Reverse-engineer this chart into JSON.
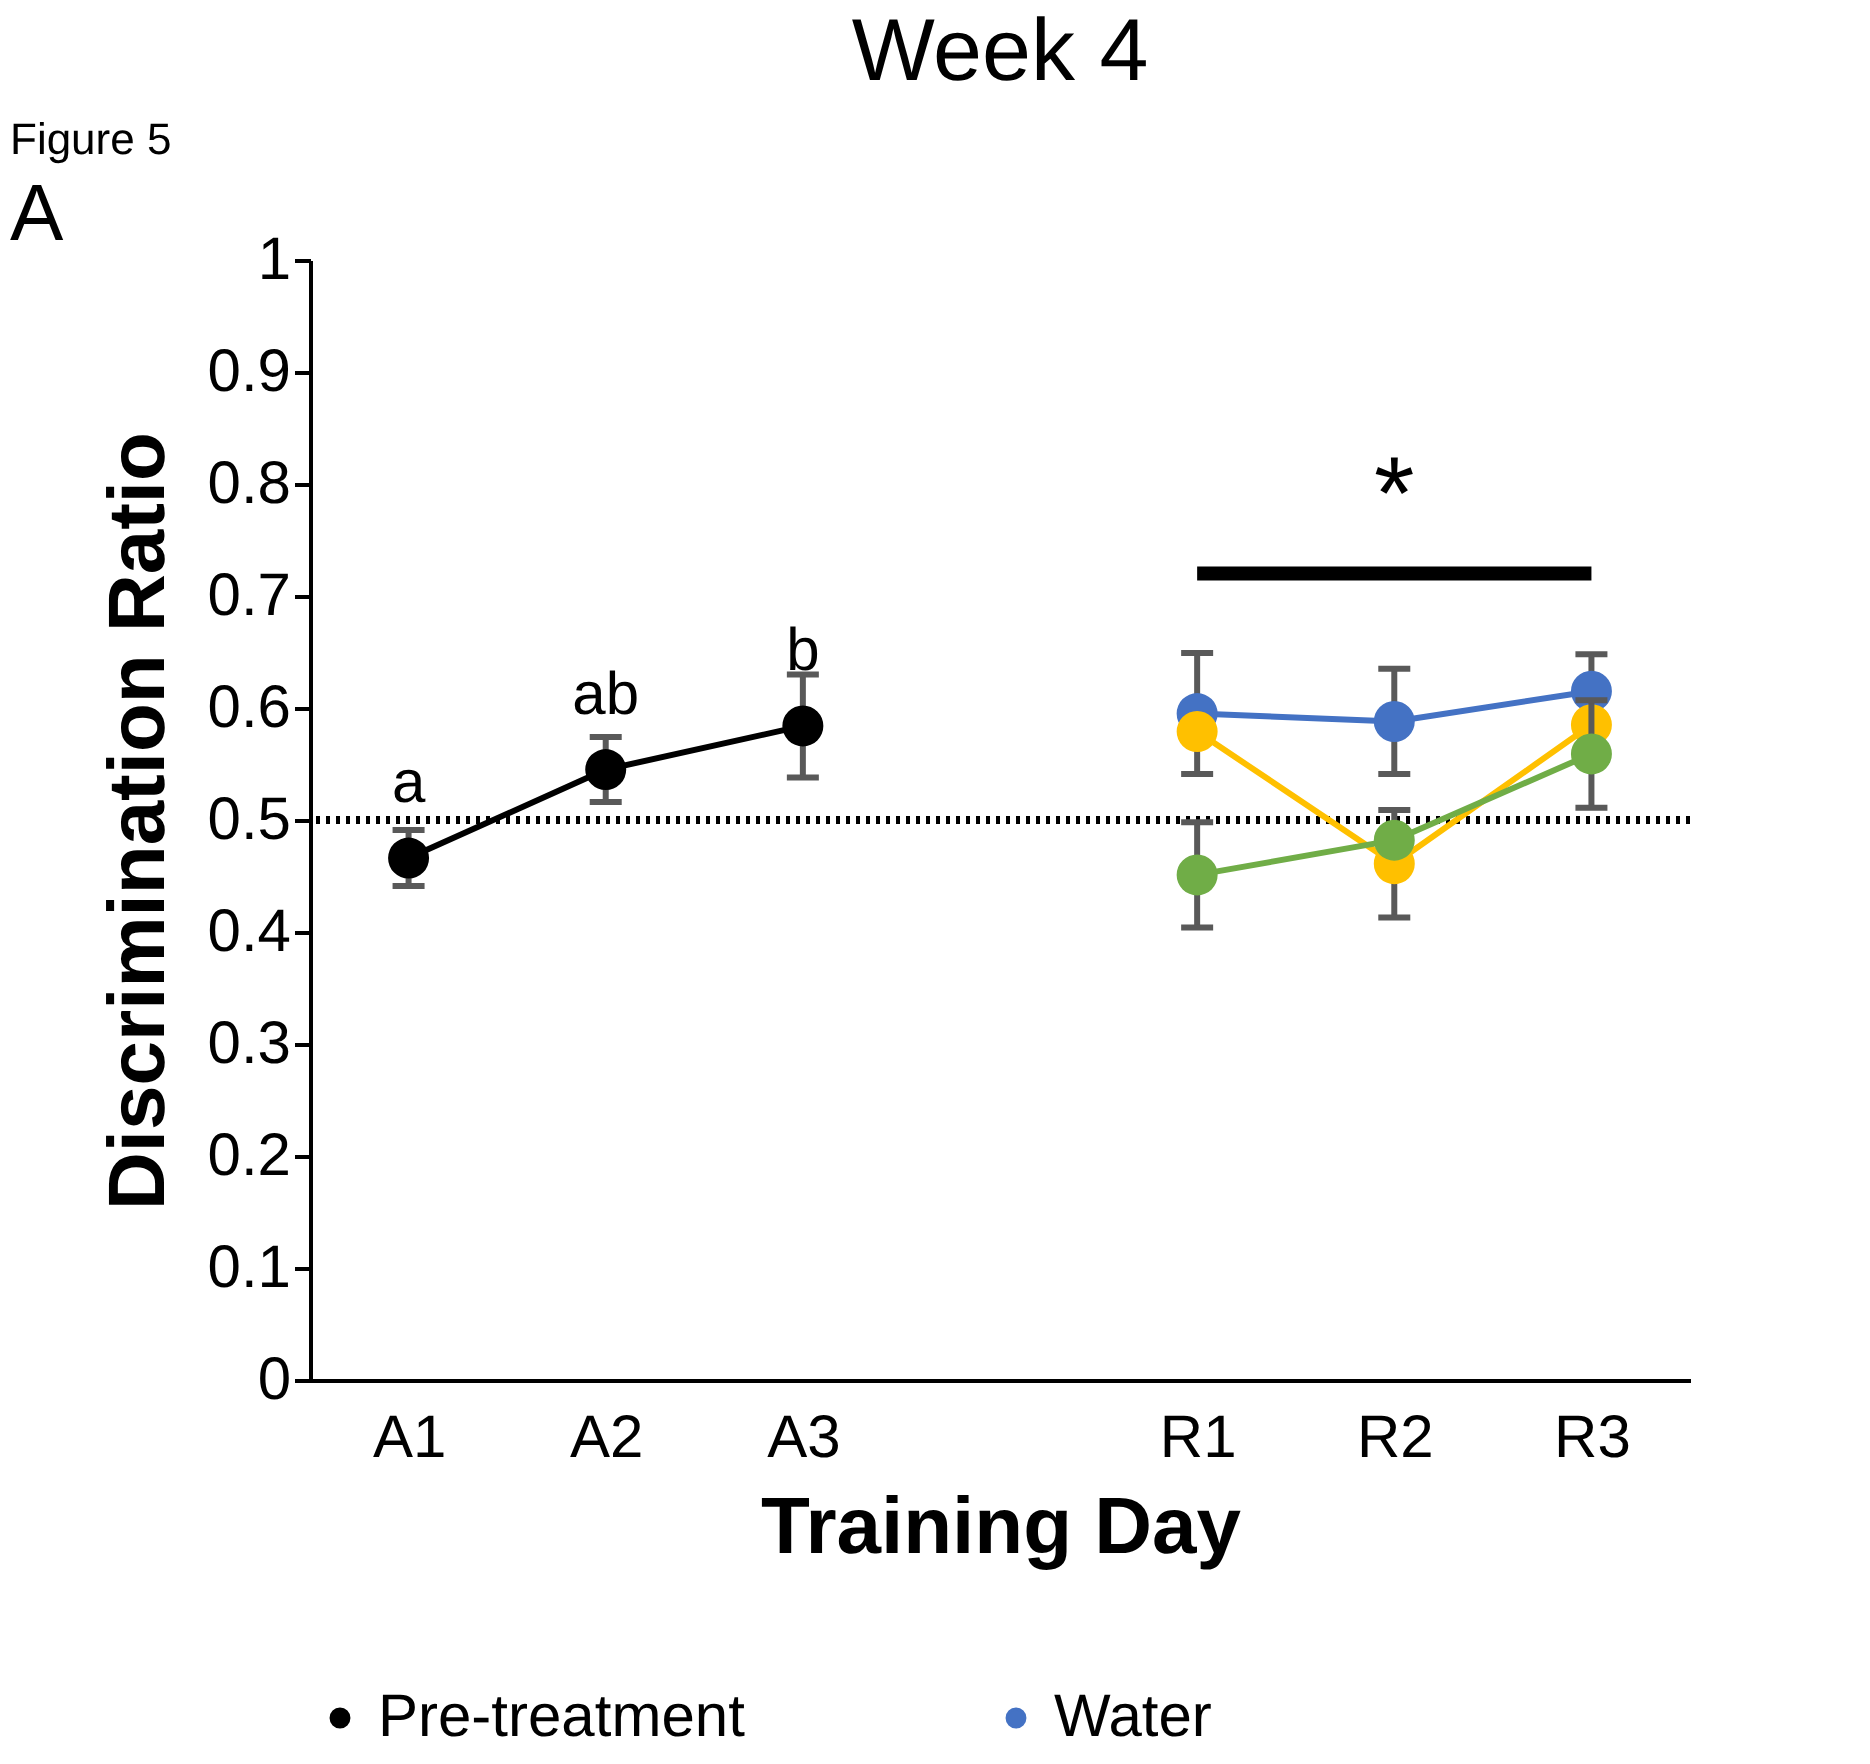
{
  "chart_data": {
    "type": "line",
    "title": "Week 4",
    "xlabel": "Training Day",
    "ylabel": "Discrimination Ratio",
    "categories": [
      "A1",
      "A2",
      "A3",
      null,
      "R1",
      "R2",
      "R3"
    ],
    "series": [
      {
        "name": "Pre-treatment",
        "color": "#000000",
        "values": [
          0.466,
          0.545,
          0.584,
          null,
          null,
          null,
          null
        ],
        "errors": [
          0.025,
          0.029,
          0.046,
          null,
          null,
          null,
          null
        ]
      },
      {
        "name": "Water",
        "color": "#4472c4",
        "values": [
          null,
          null,
          null,
          null,
          0.595,
          0.588,
          0.615
        ],
        "errors": [
          null,
          null,
          null,
          null,
          0.054,
          0.047,
          0.033
        ]
      },
      {
        "color": "#ffc000",
        "values": [
          null,
          null,
          null,
          null,
          0.579,
          0.461,
          0.585
        ],
        "errors": [
          null,
          null,
          null,
          null,
          null,
          0.048,
          null
        ]
      },
      {
        "color": "#70ad47",
        "values": [
          null,
          null,
          null,
          null,
          0.451,
          0.482,
          0.559
        ],
        "errors": [
          null,
          null,
          null,
          null,
          0.047,
          null,
          0.048
        ]
      }
    ],
    "ylim": [
      0,
      1
    ],
    "yticks": [
      0,
      0.1,
      0.2,
      0.3,
      0.4,
      0.5,
      0.6,
      0.7,
      0.8,
      0.9,
      1
    ],
    "ref_lines": [
      {
        "axis": "y",
        "value": 0.5,
        "color": "#000000",
        "line_style": "dotted"
      }
    ],
    "annotations": [
      "Figure 5",
      "A",
      {
        "text": "a",
        "x": "A1",
        "y": 0.466
      },
      {
        "text": "ab",
        "x": "A2",
        "y": 0.545
      },
      {
        "text": "b",
        "x": "A3",
        "y": 0.584
      },
      "*"
    ],
    "grid": false,
    "legend": "bottom",
    "marker": "circle",
    "line_style": "solid"
  }
}
